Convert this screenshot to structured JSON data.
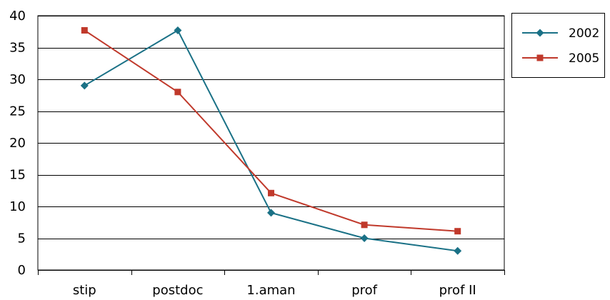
{
  "chart_data": {
    "type": "line",
    "title": "",
    "xlabel": "",
    "ylabel": "",
    "categories": [
      "stip",
      "postdoc",
      "1.aman",
      "prof",
      "prof II"
    ],
    "ylim": [
      0,
      40
    ],
    "yticks": [
      0,
      5,
      10,
      15,
      20,
      25,
      30,
      35,
      40
    ],
    "grid": "horizontal",
    "legend_position": "top-right",
    "series": [
      {
        "name": "2002",
        "color": "#1a7186",
        "marker": "diamond",
        "values": [
          29,
          37.7,
          9,
          5,
          3
        ]
      },
      {
        "name": "2005",
        "color": "#c0392b",
        "marker": "square",
        "values": [
          37.7,
          28,
          12.1,
          7.1,
          6.1
        ]
      }
    ]
  }
}
